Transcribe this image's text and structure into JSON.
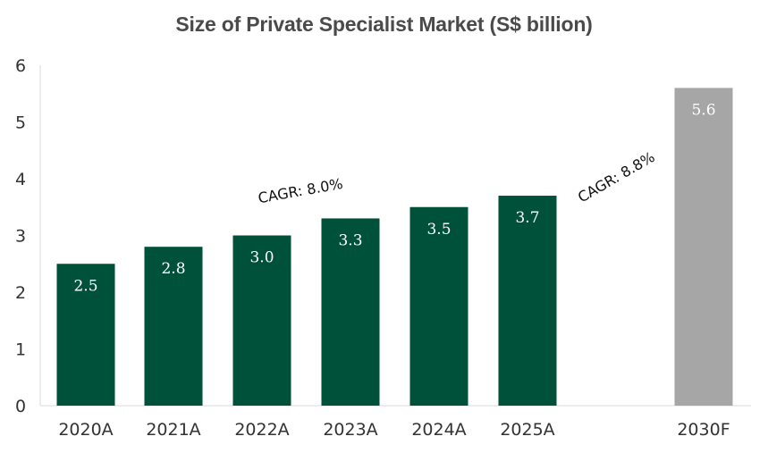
{
  "chart_data": {
    "type": "bar",
    "title": "Size of Private Specialist Market (S$ billion)",
    "categories": [
      "2020A",
      "2021A",
      "2022A",
      "2023A",
      "2024A",
      "2025A",
      "2030F"
    ],
    "values": [
      2.5,
      2.8,
      3.0,
      3.3,
      3.5,
      3.7,
      5.6
    ],
    "data_labels": [
      "2.5",
      "2.8",
      "3.0",
      "3.3",
      "3.5",
      "3.7",
      "5.6"
    ],
    "bar_colors": [
      "#00513a",
      "#00513a",
      "#00513a",
      "#00513a",
      "#00513a",
      "#00513a",
      "#a6a6a6"
    ],
    "ylim": [
      0,
      6
    ],
    "yticks": [
      "0",
      "1",
      "2",
      "3",
      "4",
      "5",
      "6"
    ],
    "xlabel": "",
    "ylabel": "",
    "grid": false,
    "annotations": [
      {
        "text": "CAGR: 8.0%"
      },
      {
        "text": "CAGR: 8.8%"
      }
    ]
  }
}
